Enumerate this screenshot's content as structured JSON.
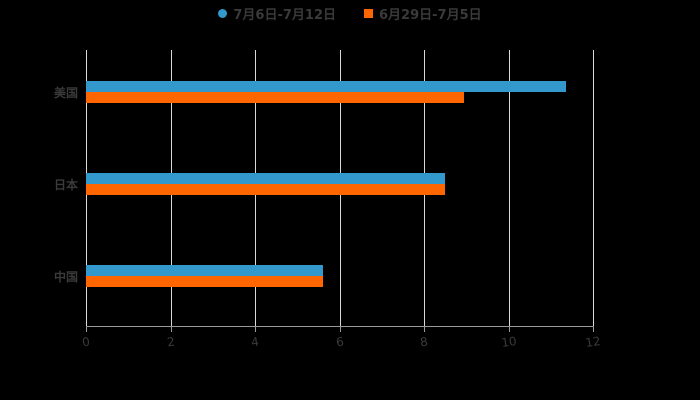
{
  "chart_data": {
    "type": "bar",
    "orientation": "horizontal",
    "title": "",
    "categories": [
      "美国",
      "日本",
      "中国"
    ],
    "series": [
      {
        "name": "7月6日-7月12日",
        "color": "#3399cc",
        "values": [
          11.35,
          8.5,
          5.6
        ]
      },
      {
        "name": "6月29日-7月5日",
        "color": "#ff6600",
        "values": [
          8.95,
          8.5,
          5.6
        ]
      }
    ],
    "xlabel": "",
    "ylabel": "",
    "xlim": [
      0,
      12
    ],
    "xticks": [
      "0",
      "2",
      "4",
      "6",
      "8",
      "10",
      "12"
    ],
    "grid": true,
    "legend_position": "top"
  },
  "legend": [
    {
      "label": "7月6日-7月12日",
      "color": "#3399cc",
      "marker": "circle"
    },
    {
      "label": "6月29日-7月5日",
      "color": "#ff6600",
      "marker": "square"
    }
  ]
}
